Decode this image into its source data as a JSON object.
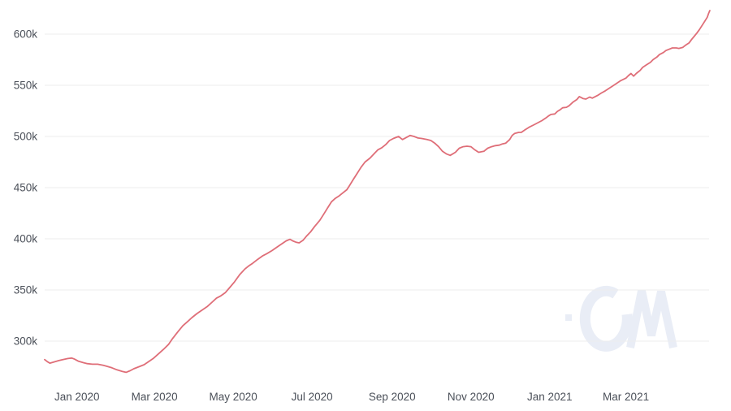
{
  "chart_data": {
    "type": "line",
    "title": "",
    "watermark": "CM",
    "grid": true,
    "legend": false,
    "colors": {
      "line": "#df6e78",
      "gridline": "#ededed",
      "tick_text": "#4b5059",
      "watermark": "#e9edf6",
      "background": "#ffffff"
    },
    "x_axis": {
      "unit": "date",
      "start_date": "2019-12-07",
      "end_date": "2021-05-06",
      "ticks": [
        {
          "label": "Jan 2020",
          "day": 25
        },
        {
          "label": "Mar 2020",
          "day": 85
        },
        {
          "label": "May 2020",
          "day": 146
        },
        {
          "label": "Jul 2020",
          "day": 207
        },
        {
          "label": "Sep 2020",
          "day": 269
        },
        {
          "label": "Nov 2020",
          "day": 330
        },
        {
          "label": "Jan 2021",
          "day": 391
        },
        {
          "label": "Mar 2021",
          "day": 450
        }
      ]
    },
    "y_axis": {
      "unit": "thousands",
      "displayed_range": [
        270,
        633
      ],
      "ticks": [
        {
          "label": "300k",
          "value": 300
        },
        {
          "label": "350k",
          "value": 350
        },
        {
          "label": "400k",
          "value": 400
        },
        {
          "label": "450k",
          "value": 450
        },
        {
          "label": "500k",
          "value": 500
        },
        {
          "label": "550k",
          "value": 550
        },
        {
          "label": "600k",
          "value": 600
        }
      ]
    },
    "series": [
      {
        "name": "value",
        "color": "#df6e78",
        "points": [
          [
            0,
            282
          ],
          [
            2,
            280
          ],
          [
            4,
            278.5
          ],
          [
            7,
            279.5
          ],
          [
            11,
            281
          ],
          [
            14,
            282
          ],
          [
            18,
            283
          ],
          [
            21,
            283.5
          ],
          [
            23,
            282.5
          ],
          [
            26,
            280.5
          ],
          [
            30,
            279
          ],
          [
            33,
            278
          ],
          [
            37,
            277.5
          ],
          [
            41,
            277.5
          ],
          [
            45,
            276.5
          ],
          [
            48,
            275.5
          ],
          [
            52,
            274
          ],
          [
            56,
            272
          ],
          [
            60,
            270.5
          ],
          [
            63,
            269.5
          ],
          [
            66,
            271
          ],
          [
            69,
            273
          ],
          [
            73,
            275
          ],
          [
            77,
            277
          ],
          [
            80,
            279.5
          ],
          [
            84,
            283
          ],
          [
            88,
            287.5
          ],
          [
            92,
            292
          ],
          [
            96,
            297
          ],
          [
            99,
            302.5
          ],
          [
            103,
            309
          ],
          [
            107,
            315
          ],
          [
            111,
            319.5
          ],
          [
            114,
            323
          ],
          [
            118,
            327
          ],
          [
            122,
            330.5
          ],
          [
            126,
            334
          ],
          [
            130,
            338.5
          ],
          [
            133,
            342
          ],
          [
            136,
            344
          ],
          [
            140,
            347.5
          ],
          [
            143,
            352
          ],
          [
            147,
            358
          ],
          [
            151,
            365
          ],
          [
            155,
            370.5
          ],
          [
            158,
            373.5
          ],
          [
            161,
            376
          ],
          [
            165,
            380
          ],
          [
            169,
            383.5
          ],
          [
            172,
            385.5
          ],
          [
            176,
            388.5
          ],
          [
            180,
            392
          ],
          [
            184,
            395.5
          ],
          [
            187,
            398
          ],
          [
            190,
            399.5
          ],
          [
            192,
            398
          ],
          [
            195,
            396.5
          ],
          [
            197,
            396
          ],
          [
            200,
            398.5
          ],
          [
            203,
            403
          ],
          [
            206,
            407
          ],
          [
            209,
            412
          ],
          [
            213,
            418
          ],
          [
            216,
            424
          ],
          [
            219,
            430
          ],
          [
            222,
            436
          ],
          [
            225,
            439.5
          ],
          [
            228,
            442
          ],
          [
            231,
            445
          ],
          [
            234,
            448
          ],
          [
            236,
            452
          ],
          [
            239,
            458
          ],
          [
            242,
            464
          ],
          [
            245,
            470
          ],
          [
            248,
            475
          ],
          [
            252,
            479
          ],
          [
            255,
            483
          ],
          [
            258,
            487
          ],
          [
            261,
            489
          ],
          [
            264,
            492
          ],
          [
            267,
            496
          ],
          [
            270,
            498
          ],
          [
            274,
            500
          ],
          [
            277,
            497
          ],
          [
            280,
            499
          ],
          [
            283,
            501
          ],
          [
            286,
            500
          ],
          [
            289,
            498.5
          ],
          [
            292,
            498
          ],
          [
            296,
            497
          ],
          [
            299,
            496
          ],
          [
            302,
            493.5
          ],
          [
            305,
            490
          ],
          [
            308,
            485.5
          ],
          [
            311,
            483
          ],
          [
            314,
            481.5
          ],
          [
            318,
            484.5
          ],
          [
            321,
            488.5
          ],
          [
            324,
            490
          ],
          [
            327,
            490.5
          ],
          [
            330,
            490
          ],
          [
            333,
            487
          ],
          [
            336,
            484.5
          ],
          [
            340,
            485.5
          ],
          [
            343,
            488.5
          ],
          [
            346,
            490
          ],
          [
            349,
            491
          ],
          [
            352,
            491.5
          ],
          [
            354,
            492.5
          ],
          [
            357,
            493.5
          ],
          [
            360,
            497
          ],
          [
            362,
            501
          ],
          [
            364,
            503
          ],
          [
            367,
            504
          ],
          [
            369,
            504
          ],
          [
            372,
            506.5
          ],
          [
            375,
            509
          ],
          [
            379,
            511.5
          ],
          [
            382,
            513.5
          ],
          [
            385,
            515.5
          ],
          [
            388,
            518
          ],
          [
            390,
            520
          ],
          [
            392,
            521.5
          ],
          [
            395,
            522
          ],
          [
            397,
            524.5
          ],
          [
            399,
            526
          ],
          [
            401,
            528
          ],
          [
            404,
            528.5
          ],
          [
            406,
            530
          ],
          [
            409,
            533.5
          ],
          [
            412,
            536
          ],
          [
            414,
            539
          ],
          [
            417,
            537
          ],
          [
            419,
            536.5
          ],
          [
            422,
            538.5
          ],
          [
            424,
            537.5
          ],
          [
            428,
            540
          ],
          [
            431,
            542.5
          ],
          [
            434,
            544.5
          ],
          [
            437,
            547
          ],
          [
            440,
            549.5
          ],
          [
            443,
            552
          ],
          [
            446,
            554.5
          ],
          [
            450,
            557
          ],
          [
            452,
            559.5
          ],
          [
            454,
            561.5
          ],
          [
            456,
            559
          ],
          [
            458,
            561.5
          ],
          [
            461,
            564.5
          ],
          [
            463,
            567.5
          ],
          [
            466,
            570
          ],
          [
            469,
            572.5
          ],
          [
            471,
            575
          ],
          [
            474,
            577.5
          ],
          [
            476,
            580
          ],
          [
            479,
            582
          ],
          [
            481,
            584
          ],
          [
            484,
            585.5
          ],
          [
            486,
            586.5
          ],
          [
            489,
            586.5
          ],
          [
            491,
            586
          ],
          [
            494,
            587
          ],
          [
            496,
            589
          ],
          [
            499,
            591.5
          ],
          [
            501,
            595
          ],
          [
            503,
            598
          ],
          [
            505,
            601
          ],
          [
            507,
            604.5
          ],
          [
            509,
            608.5
          ],
          [
            511,
            612.5
          ],
          [
            513,
            616.5
          ],
          [
            514,
            620
          ],
          [
            515,
            623
          ]
        ]
      }
    ]
  }
}
